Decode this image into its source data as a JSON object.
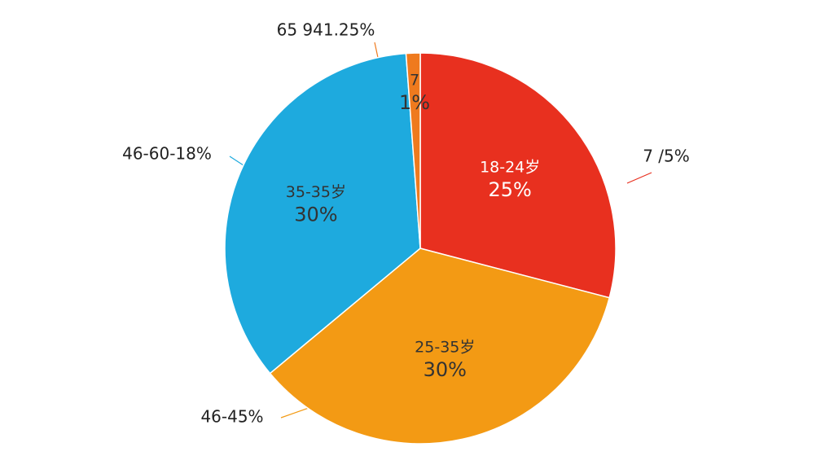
{
  "chart_data": {
    "type": "pie",
    "categories": [
      "18-24岁",
      "25-35岁",
      "35-35岁",
      "7"
    ],
    "values": [
      25,
      30,
      30,
      1
    ],
    "value_labels": [
      "25%",
      "30%",
      "30%",
      "1%"
    ],
    "colors": [
      "#e8301f",
      "#f39a14",
      "#1eaade",
      "#ef7a1e"
    ],
    "annotations": [
      "65 941.25%",
      "46-60-18%",
      "7 /5%",
      "46-45%"
    ]
  }
}
